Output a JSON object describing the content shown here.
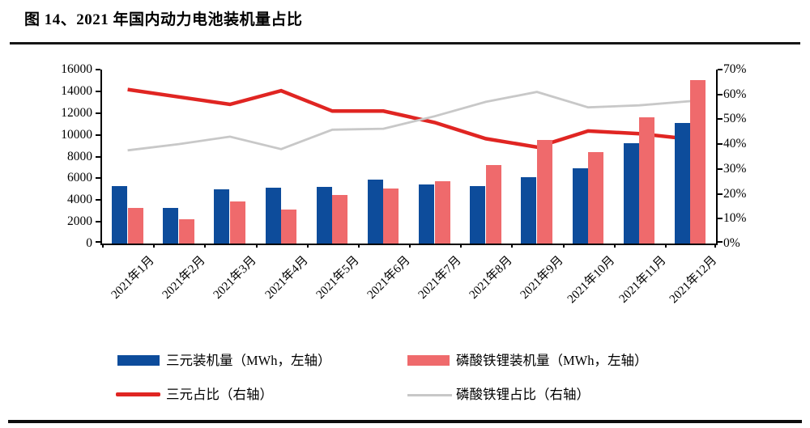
{
  "page": {
    "title": "图 14、2021 年国内动力电池装机量占比"
  },
  "chart_data": {
    "type": "combo-bar-line",
    "title": "2021 年国内动力电池装机量占比",
    "categories": [
      "2021年1月",
      "2021年2月",
      "2021年3月",
      "2021年4月",
      "2021年5月",
      "2021年6月",
      "2021年7月",
      "2021年8月",
      "2021年9月",
      "2021年10月",
      "2021年11月",
      "2021年12月"
    ],
    "series": [
      {
        "id": "ternary-install",
        "name": "三元装机量（MWh，左轴）",
        "type": "bar",
        "axis": "left",
        "color": "#0d4c9b",
        "values": [
          5300,
          3250,
          5000,
          5150,
          5200,
          5900,
          5450,
          5300,
          6100,
          6950,
          9200,
          11100
        ]
      },
      {
        "id": "lfp-install",
        "name": "磷酸铁锂装机量（MWh，左轴）",
        "type": "bar",
        "axis": "left",
        "color": "#ef6a6c",
        "values": [
          3250,
          2200,
          3850,
          3150,
          4500,
          5100,
          5750,
          7200,
          9500,
          8400,
          11600,
          15000
        ]
      },
      {
        "id": "ternary-share",
        "name": "三元占比（右轴）",
        "type": "line",
        "axis": "right",
        "color": "#e02522",
        "values": [
          62,
          59,
          56,
          61.5,
          53.3,
          53.3,
          48.7,
          42.2,
          38.8,
          45.3,
          44.2,
          42
        ]
      },
      {
        "id": "lfp-share",
        "name": "磷酸铁锂占比（右轴）",
        "type": "line",
        "axis": "right",
        "color": "#c8c8c8",
        "values": [
          37.5,
          40,
          43,
          38,
          45.8,
          46.2,
          51.2,
          57,
          61,
          54.8,
          55.6,
          57.3
        ]
      }
    ],
    "left_axis": {
      "min": 0,
      "max": 16000,
      "step": 2000,
      "tick_labels": [
        "0",
        "2000",
        "4000",
        "6000",
        "8000",
        "10000",
        "12000",
        "14000",
        "16000"
      ]
    },
    "right_axis": {
      "min": 0,
      "max": 70,
      "step": 10,
      "unit": "%",
      "tick_labels": [
        "0%",
        "10%",
        "20%",
        "30%",
        "40%",
        "50%",
        "60%",
        "70%"
      ]
    },
    "grid": false,
    "legend_position": "bottom"
  }
}
